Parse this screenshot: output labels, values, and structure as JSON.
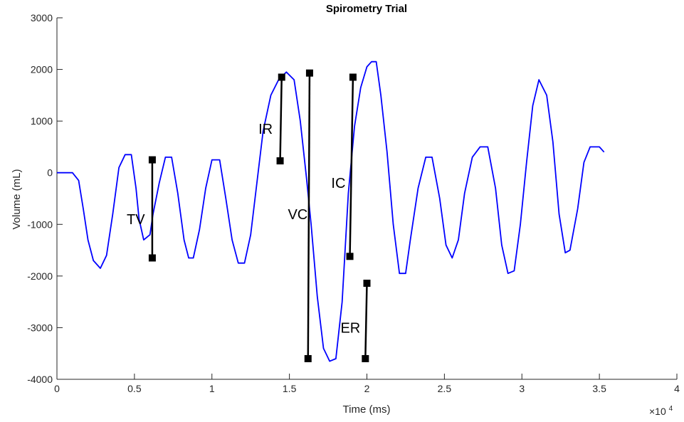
{
  "chart_data": {
    "type": "line",
    "title": "Spirometry Trial",
    "xlabel": "Time (ms)",
    "ylabel": "Volume (mL)",
    "x_exponent_label": "×10",
    "x_exponent_power": "4",
    "xlim": [
      0,
      40000
    ],
    "ylim": [
      -4000,
      3000
    ],
    "xticks": [
      0,
      5000,
      10000,
      15000,
      20000,
      25000,
      30000,
      35000,
      40000
    ],
    "xtick_labels": [
      "0",
      "0.5",
      "1",
      "1.5",
      "2",
      "2.5",
      "3",
      "3.5",
      "4"
    ],
    "yticks": [
      -4000,
      -3000,
      -2000,
      -1000,
      0,
      1000,
      2000,
      3000
    ],
    "ytick_labels": [
      "-4000",
      "-3000",
      "-2000",
      "-1000",
      "0",
      "1000",
      "2000",
      "3000"
    ],
    "grid": false,
    "series": [
      {
        "color": "#0000ff",
        "x": [
          0,
          1000,
          1400,
          1700,
          2000,
          2350,
          2800,
          3200,
          3600,
          4000,
          4400,
          4800,
          5100,
          5300,
          5600,
          6000,
          6200,
          6600,
          7000,
          7400,
          7800,
          8200,
          8500,
          8800,
          9200,
          9600,
          10000,
          10500,
          10900,
          11300,
          11700,
          12100,
          12500,
          12900,
          13300,
          13800,
          14300,
          14800,
          15300,
          15700,
          16100,
          16400,
          16800,
          17200,
          17600,
          18000,
          18400,
          18800,
          19200,
          19600,
          20000,
          20300,
          20600,
          20900,
          21300,
          21700,
          22100,
          22500,
          22800,
          23300,
          23800,
          24200,
          24700,
          25100,
          25500,
          25900,
          26300,
          26800,
          27300,
          27800,
          28300,
          28700,
          29100,
          29500,
          29900,
          30300,
          30700,
          31100,
          31600,
          32000,
          32400,
          32800,
          33100,
          33600,
          34000,
          34400,
          35000,
          35300
        ],
        "y": [
          0,
          0,
          -150,
          -700,
          -1300,
          -1700,
          -1850,
          -1600,
          -800,
          100,
          350,
          350,
          -300,
          -900,
          -1300,
          -1200,
          -800,
          -200,
          300,
          300,
          -400,
          -1300,
          -1650,
          -1650,
          -1100,
          -300,
          250,
          250,
          -500,
          -1300,
          -1750,
          -1750,
          -1200,
          -200,
          800,
          1500,
          1800,
          1950,
          1800,
          1000,
          -100,
          -1000,
          -2400,
          -3400,
          -3650,
          -3600,
          -2500,
          -400,
          900,
          1650,
          2050,
          2150,
          2150,
          1500,
          400,
          -1000,
          -1950,
          -1950,
          -1300,
          -300,
          300,
          300,
          -500,
          -1400,
          -1650,
          -1300,
          -400,
          300,
          500,
          500,
          -300,
          -1400,
          -1950,
          -1900,
          -1000,
          200,
          1300,
          1800,
          1500,
          600,
          -800,
          -1550,
          -1500,
          -700,
          200,
          500,
          500,
          400
        ]
      }
    ],
    "annotations": [
      {
        "label": "TV",
        "x1": 6150,
        "y1": 250,
        "x2": 6150,
        "y2": -1650,
        "text_x": 4500,
        "text_y": -900
      },
      {
        "label": "IR",
        "x1": 14500,
        "y1": 1850,
        "x2": 14400,
        "y2": 230,
        "text_x": 13000,
        "text_y": 850
      },
      {
        "label": "VC",
        "x1": 16300,
        "y1": 1930,
        "x2": 16200,
        "y2": -3600,
        "text_x": 14900,
        "text_y": -800
      },
      {
        "label": "IC",
        "x1": 19100,
        "y1": 1850,
        "x2": 18900,
        "y2": -1620,
        "text_x": 17700,
        "text_y": -200
      },
      {
        "label": "ER",
        "x1": 20000,
        "y1": -2140,
        "x2": 19900,
        "y2": -3600,
        "text_x": 18300,
        "text_y": -3000
      }
    ]
  }
}
